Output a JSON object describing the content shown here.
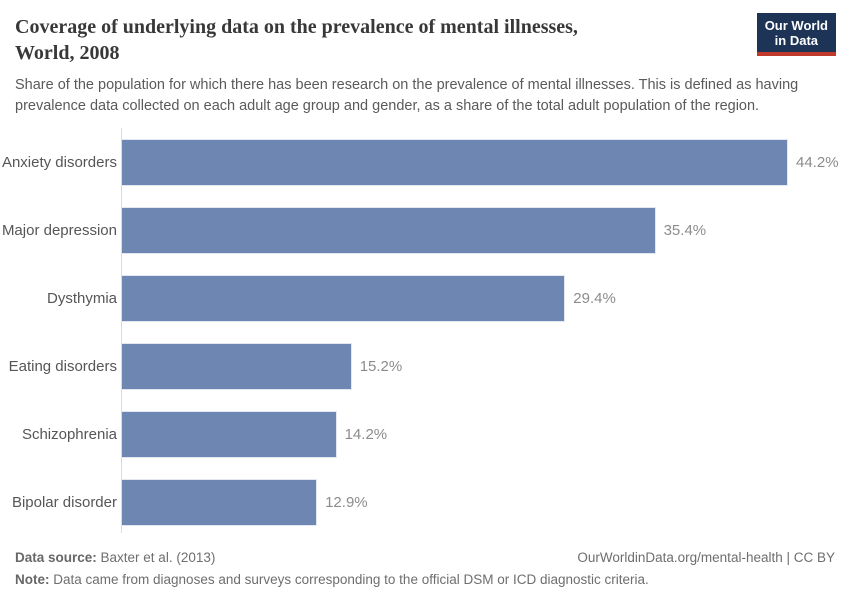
{
  "header": {
    "title_line1": "Coverage of underlying data on the prevalence of mental illnesses,",
    "title_line2": "World, 2008",
    "subtitle": "Share of the population for which there has been research on the prevalence of mental illnesses. This is defined as having prevalence data collected on each adult age group and gender, as a share of the total adult population of the region."
  },
  "logo": {
    "line1": "Our World",
    "line2": "in Data",
    "bg_color": "#1d3456",
    "accent_color": "#c0392b"
  },
  "chart_data": {
    "type": "bar",
    "orientation": "horizontal",
    "title": "Coverage of underlying data on the prevalence of mental illnesses, World, 2008",
    "categories": [
      "Anxiety disorders",
      "Major depression",
      "Dysthymia",
      "Eating disorders",
      "Schizophrenia",
      "Bipolar disorder"
    ],
    "values": [
      44.2,
      35.4,
      29.4,
      15.2,
      14.2,
      12.9
    ],
    "value_labels": [
      "44.2%",
      "35.4%",
      "29.4%",
      "15.2%",
      "14.2%",
      "12.9%"
    ],
    "unit": "%",
    "xlabel": "",
    "ylabel": "",
    "xlim": [
      0,
      44.2
    ],
    "grid": false,
    "legend": "none",
    "bar_color": "#6e87b2",
    "value_label_color": "#8c8c8c",
    "category_label_color": "#565656"
  },
  "footer": {
    "source_label": "Data source:",
    "source_text": " Baxter et al. (2013)",
    "attribution": "OurWorldinData.org/mental-health | CC BY",
    "note_label": "Note:",
    "note_text": " Data came from diagnoses and surveys corresponding to the official DSM or ICD diagnostic criteria."
  }
}
